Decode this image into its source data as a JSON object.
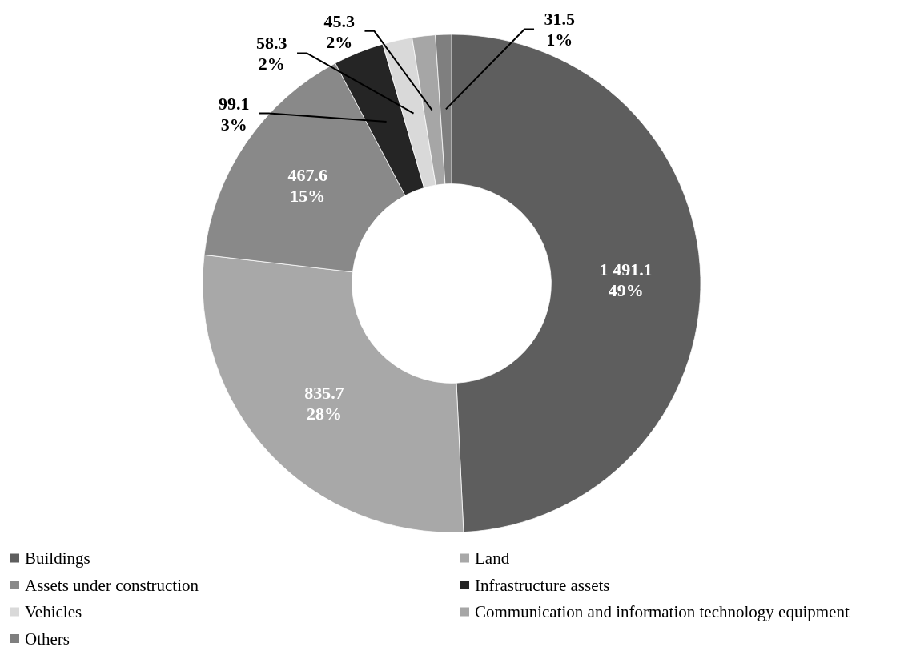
{
  "chart_data": {
    "type": "donut",
    "categories": [
      "Buildings",
      "Land",
      "Assets under construction",
      "Infrastructure assets",
      "Vehicles",
      "Communication and information technology equipment",
      "Others"
    ],
    "values": [
      1491.1,
      835.7,
      467.6,
      99.1,
      58.3,
      45.3,
      31.5
    ],
    "colors": [
      "#5e5e5e",
      "#a8a8a8",
      "#898989",
      "#252525",
      "#d9d9d9",
      "#a6a6a6",
      "#7f7f7f"
    ],
    "value_labels": [
      "1 491.1\n49%",
      "835.7\n28%",
      "467.6\n15%",
      "99.1\n3%",
      "58.3\n2%",
      "45.3\n2%",
      "31.5\n1%"
    ],
    "legend": "bottom"
  }
}
